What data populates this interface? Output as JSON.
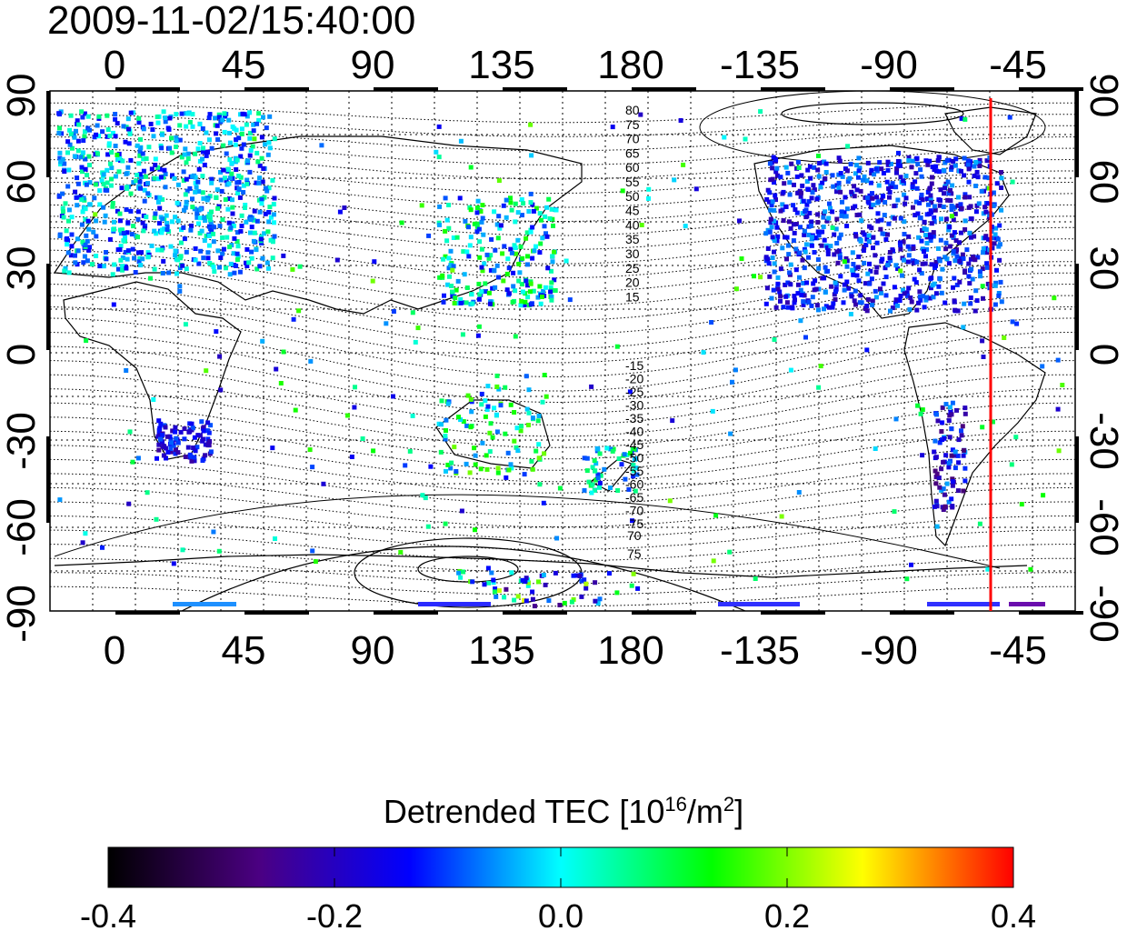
{
  "map": {
    "timestamp": "2009-11-02/15:40:00",
    "top_lon_labels": [
      "0",
      "45",
      "90",
      "135",
      "180",
      "-135",
      "-90",
      "-45"
    ],
    "bottom_lon_labels": [
      "0",
      "45",
      "90",
      "135",
      "180",
      "-135",
      "-90",
      "-45"
    ],
    "left_lat_labels": [
      "90",
      "60",
      "30",
      "0",
      "-30",
      "-60",
      "-90"
    ],
    "right_lat_labels": [
      "90",
      "60",
      "30",
      "0",
      "-30",
      "-60",
      "-90"
    ],
    "contour_labels_north": [
      "80",
      "75",
      "70",
      "65",
      "60",
      "55",
      "50",
      "45",
      "40",
      "35",
      "30",
      "25",
      "20",
      "15"
    ],
    "contour_labels_south": [
      "-15",
      "-20",
      "-25",
      "-30",
      "-35",
      "-40",
      "-45",
      "-50",
      "-55",
      "-60",
      "-65",
      "-70",
      "-75"
    ],
    "contour_labels_south_deep": [
      "70",
      "75"
    ],
    "red_line_longitude": -55,
    "colors": {
      "red_line": "#ff0000",
      "grid": "#000000"
    }
  },
  "colorbar": {
    "title_main": "Detrended TEC  [10",
    "title_exp": "16",
    "title_mid": "/m",
    "title_exp2": "2",
    "title_end": "]",
    "tick_labels": [
      "-0.4",
      "-0.2",
      "0.0",
      "0.2",
      "0.4"
    ],
    "range": [
      -0.4,
      0.4
    ],
    "colors": [
      "#000000",
      "#4b0082",
      "#0000ff",
      "#00ffff",
      "#00ff00",
      "#ffff00",
      "#ff0000"
    ]
  }
}
